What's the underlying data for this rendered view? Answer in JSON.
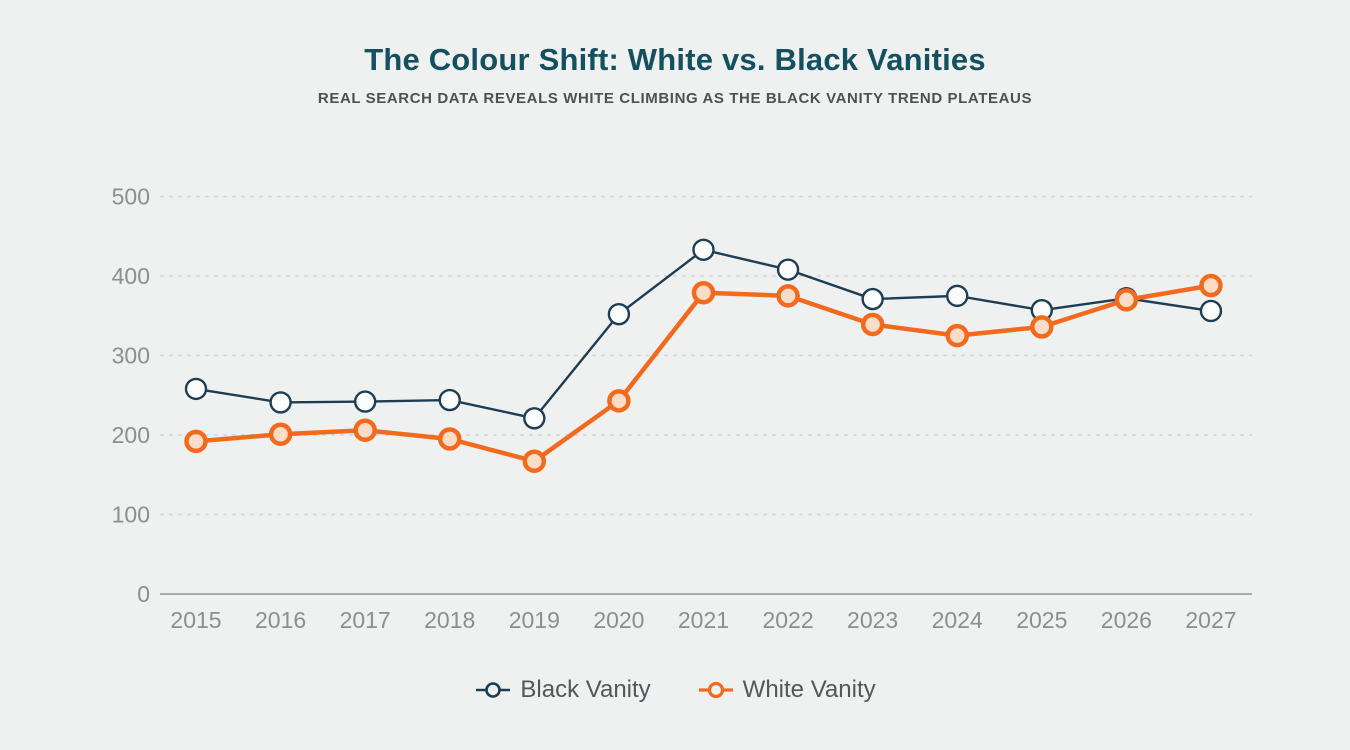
{
  "header": {
    "title": "The Colour Shift: White vs. Black Vanities",
    "subtitle": "REAL SEARCH DATA REVEALS WHITE CLIMBING AS THE BLACK VANITY TREND PLATEAUS"
  },
  "colors": {
    "background": "#eff1f1",
    "title": "#14505f",
    "subtitle": "#4c5153"
  },
  "chart_data": {
    "type": "line",
    "title": "The Colour Shift: White vs. Black Vanities",
    "subtitle": "REAL SEARCH DATA REVEALS WHITE CLIMBING AS THE BLACK VANITY TREND PLATEAUS",
    "x": [
      2015,
      2016,
      2017,
      2018,
      2019,
      2020,
      2021,
      2022,
      2023,
      2024,
      2025,
      2026,
      2027
    ],
    "series": [
      {
        "name": "Black Vanity",
        "color": "#1e3d53",
        "marker_fill": "#fcfdfd",
        "line_width": 2.4,
        "marker_radius": 10,
        "values": [
          258,
          241,
          242,
          244,
          221,
          352,
          433,
          408,
          371,
          375,
          357,
          372,
          356
        ]
      },
      {
        "name": "White Vanity",
        "color": "#f26a1e",
        "marker_fill": "#fbddc7",
        "line_width": 4.5,
        "marker_radius": 9.5,
        "values": [
          192,
          201,
          206,
          195,
          167,
          243,
          379,
          375,
          339,
          325,
          336,
          370,
          388
        ]
      }
    ],
    "ylim": [
      0,
      500
    ],
    "yticks": [
      0,
      100,
      200,
      300,
      400,
      500
    ],
    "xlabel": "",
    "ylabel": "",
    "grid": "horizontal-dashed",
    "legend_position": "bottom",
    "tick_color": "#8b8f90",
    "grid_color": "#d3d6d6",
    "axis_color": "#a6abab"
  }
}
